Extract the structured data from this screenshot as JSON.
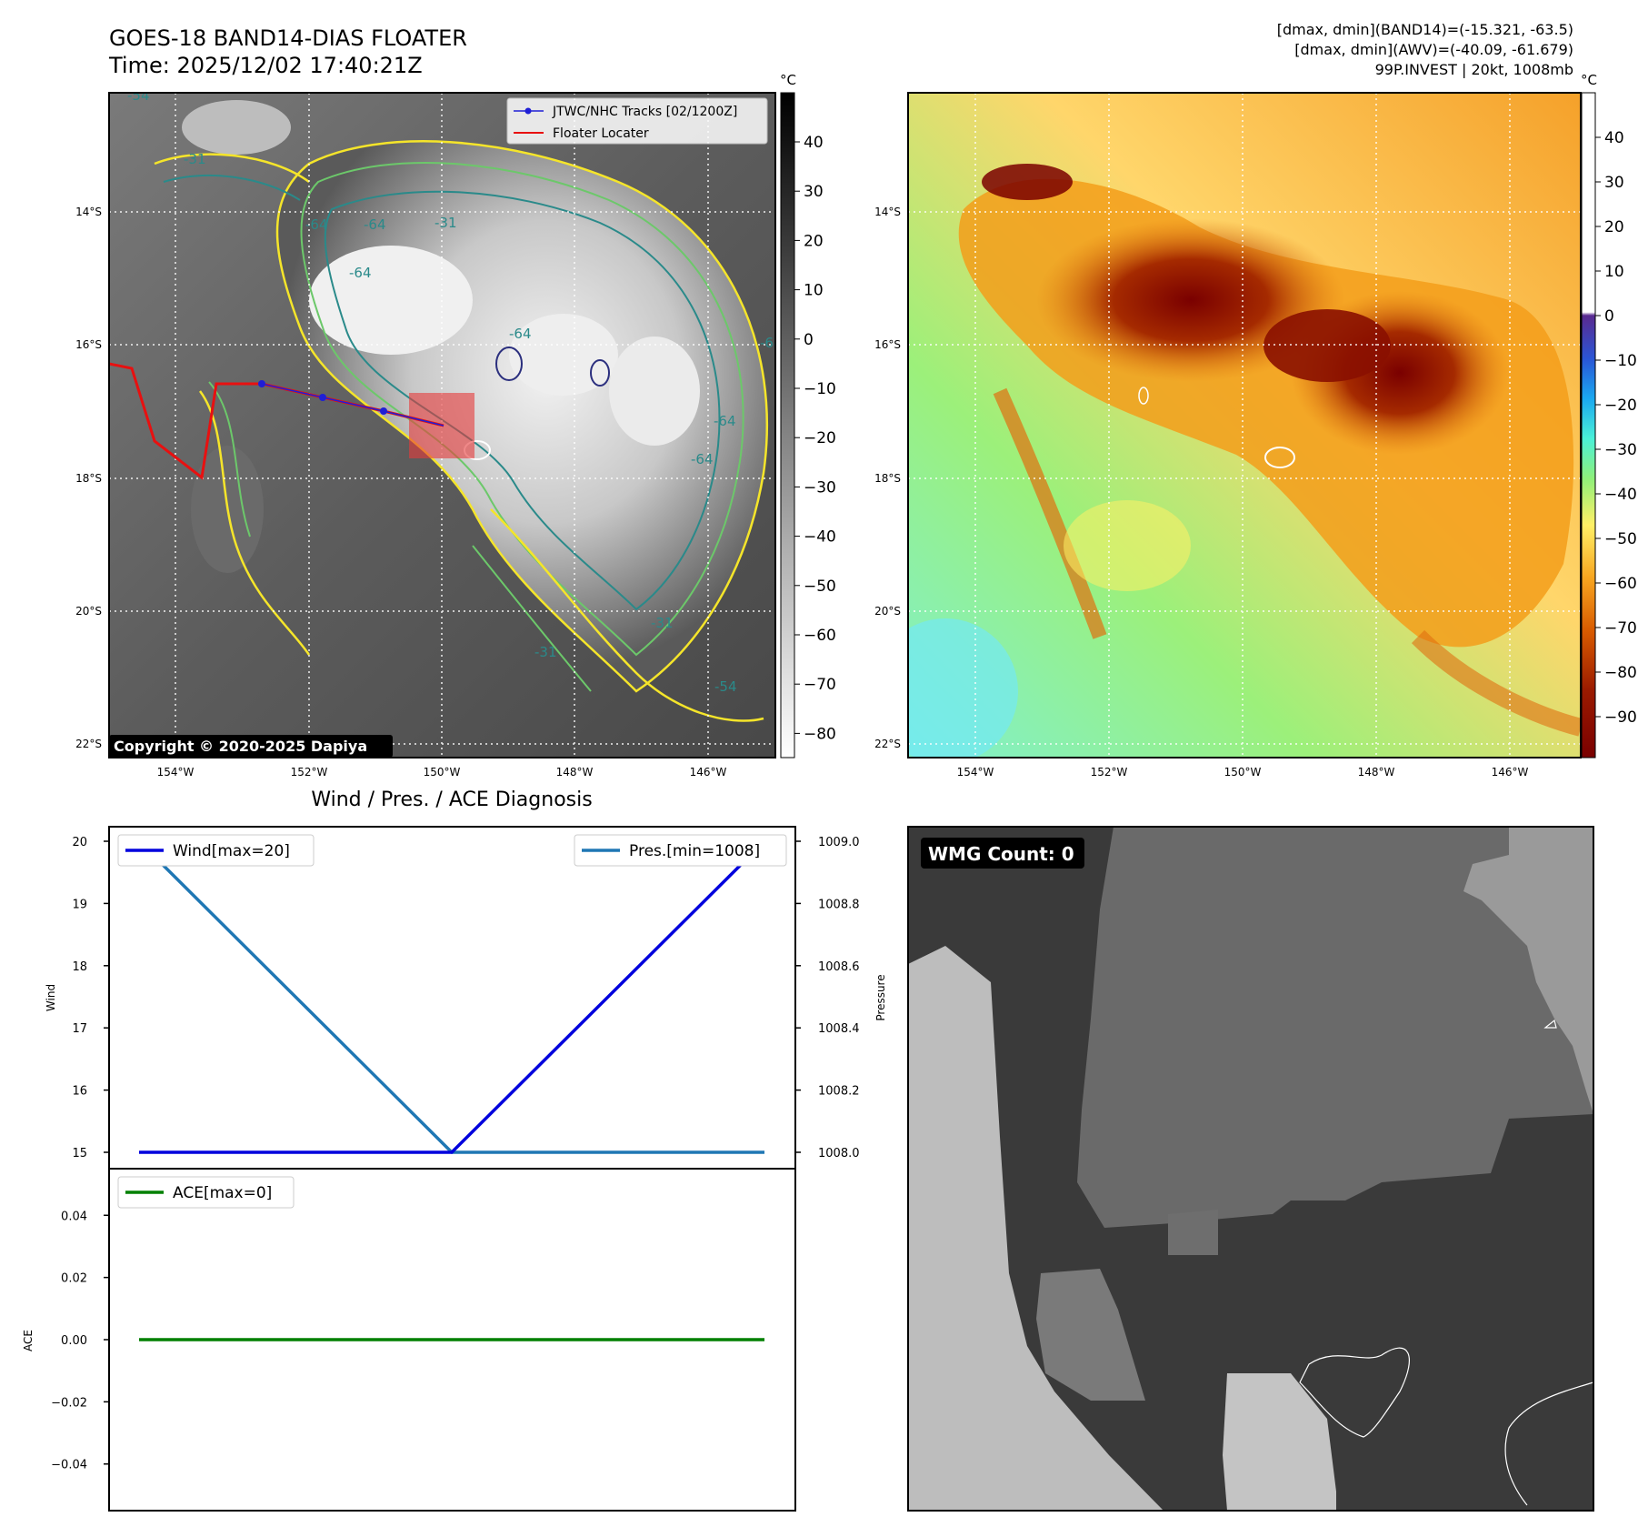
{
  "header": {
    "title_line1": "GOES-18 BAND14-DIAS FLOATER",
    "title_line2": "Time: 2025/12/02 17:40:21Z",
    "info_line1": "[dmax, dmin](BAND14)=(-15.321, -63.5)",
    "info_line2": "[dmax, dmin](AWV)=(-40.09, -61.679)",
    "info_line3": "99P.INVEST | 20kt, 1008mb"
  },
  "colors": {
    "track_blue": "#1f1fd6",
    "locator_red": "#e81010",
    "wind_line": "#0000dd",
    "pres_line": "#1f77b4",
    "ace_line": "#008000",
    "contour_yellow": "#f5e52a",
    "contour_green": "#6cc86a",
    "contour_teal": "#2a8a8a",
    "contour_navy": "#2b2f7e"
  },
  "map_ir": {
    "unit": "°C",
    "colorbar_ticks": [
      "40",
      "30",
      "20",
      "10",
      "0",
      "−10",
      "−20",
      "−30",
      "−40",
      "−50",
      "−60",
      "−70",
      "−80"
    ],
    "lat_labels": [
      "14°S",
      "16°S",
      "18°S",
      "20°S",
      "22°S"
    ],
    "lon_labels": [
      "154°W",
      "152°W",
      "150°W",
      "148°W",
      "146°W"
    ],
    "contour_labels": [
      "-31",
      "-64",
      "-64",
      "-64",
      "-64",
      "-64",
      "-64",
      "-54",
      "-54",
      "-31",
      "-31",
      "-31",
      "-64"
    ],
    "legend": [
      "JTWC/NHC Tracks [02/1200Z]",
      "Floater Locater"
    ],
    "copyright": "Copyright © 2020-2025 Dapiya"
  },
  "map_awv": {
    "unit": "°C",
    "colorbar_ticks": [
      "40",
      "30",
      "20",
      "10",
      "0",
      "−10",
      "−20",
      "−30",
      "−40",
      "−50",
      "−60",
      "−70",
      "−80",
      "−90"
    ],
    "lat_labels": [
      "14°S",
      "16°S",
      "18°S",
      "20°S",
      "22°S"
    ],
    "lon_labels": [
      "154°W",
      "152°W",
      "150°W",
      "148°W",
      "146°W"
    ]
  },
  "wmg": {
    "label": "WMG Count: 0"
  },
  "chart_data": [
    {
      "type": "line",
      "title": "Wind / Pres. / ACE Diagnosis",
      "ylabel": "Wind",
      "ylabel_right": "Pressure",
      "ylim": [
        15,
        20
      ],
      "ylim_right": [
        1008.0,
        1009.0
      ],
      "yticks": [
        "20",
        "19",
        "18",
        "17",
        "16",
        "15"
      ],
      "yticks_right": [
        "1009.0",
        "1008.8",
        "1008.6",
        "1008.4",
        "1008.2",
        "1008.0"
      ],
      "x": [
        0,
        1,
        2
      ],
      "series": [
        {
          "name": "Wind[max=20]",
          "values": [
            15,
            15,
            20
          ],
          "axis": "left"
        },
        {
          "name": "Pres.[min=1008]",
          "values": [
            1009.0,
            1008.0,
            1008.0
          ],
          "axis": "right"
        }
      ]
    },
    {
      "type": "line",
      "ylabel": "ACE",
      "ylim": [
        -0.055,
        0.055
      ],
      "yticks": [
        "0.04",
        "0.02",
        "0.00",
        "−0.02",
        "−0.04"
      ],
      "x": [
        0,
        1,
        2
      ],
      "series": [
        {
          "name": "ACE[max=0]",
          "values": [
            0,
            0,
            0
          ]
        }
      ]
    }
  ]
}
